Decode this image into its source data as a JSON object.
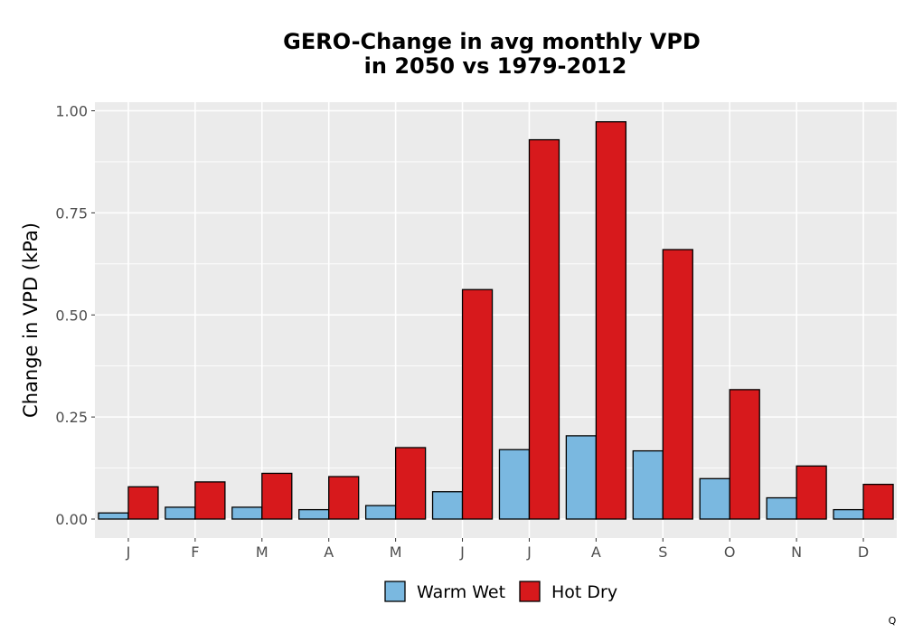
{
  "chart_data": {
    "type": "bar",
    "title": "GERO-Change in avg monthly VPD",
    "title_line2": "in 2050 vs 1979-2012",
    "xlabel": "",
    "ylabel": "Change in VPD (kPa)",
    "ylim": [
      -0.05,
      1.02
    ],
    "yticks": [
      "0.00",
      "0.25",
      "0.50",
      "0.75",
      "1.00"
    ],
    "ytick_values": [
      0,
      0.25,
      0.5,
      0.75,
      1.0
    ],
    "categories": [
      "J",
      "F",
      "M",
      "A",
      "M",
      "J",
      "J",
      "A",
      "S",
      "O",
      "N",
      "D"
    ],
    "series": [
      {
        "name": "Warm Wet",
        "color": "#7ab8e0",
        "values": [
          0.015,
          0.029,
          0.029,
          0.023,
          0.033,
          0.067,
          0.17,
          0.204,
          0.167,
          0.099,
          0.052,
          0.023
        ]
      },
      {
        "name": "Hot Dry",
        "color": "#d7191c",
        "values": [
          0.079,
          0.091,
          0.112,
          0.104,
          0.175,
          0.562,
          0.929,
          0.973,
          0.66,
          0.317,
          0.13,
          0.085
        ]
      }
    ],
    "grid": true,
    "legend_position": "bottom",
    "panel_background": "#ebebeb",
    "grid_color": "#ffffff"
  },
  "corner_mark": "Q"
}
